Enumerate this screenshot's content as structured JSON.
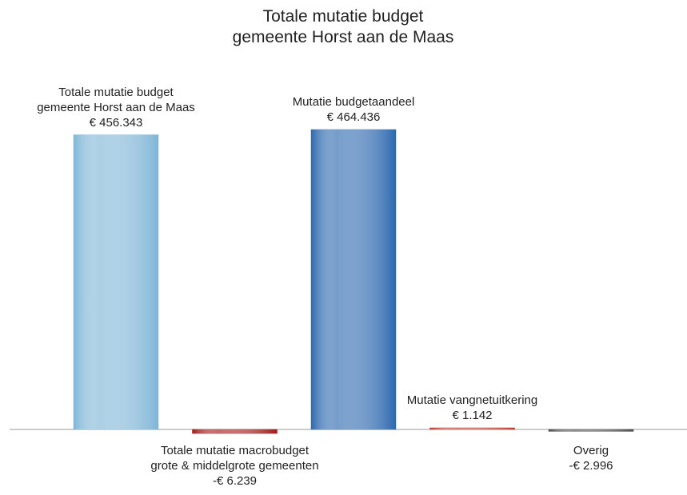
{
  "chart_data": {
    "type": "bar",
    "title": "Totale mutatie budget\ngemeente Horst aan de Maas",
    "categories": [
      "Totale mutatie budget\ngemeente Horst aan de Maas",
      "Totale mutatie macrobudget\ngrote & middelgrote gemeenten",
      "Mutatie budgetaandeel",
      "Mutatie vangnetuitkering",
      "Overig"
    ],
    "values": [
      456343,
      -6239,
      464436,
      1142,
      -2996
    ],
    "value_labels": [
      "€ 456.343",
      "-€ 6.239",
      "€ 464.436",
      "€ 1.142",
      "-€ 2.996"
    ],
    "colors": [
      "#7fb5d6",
      "#9e1b1b",
      "#2c68ae",
      "#c0392b",
      "#4a4a4a"
    ]
  }
}
